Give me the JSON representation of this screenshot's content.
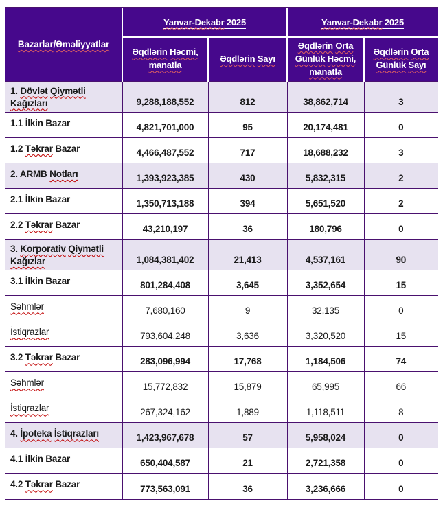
{
  "colors": {
    "header_bg": "#46088C",
    "header_text": "#FFFFFF",
    "section_row_bg": "#E7E2F0",
    "table_border": "#4A116F",
    "spellcheck_squiggle": "#C00000",
    "spellcheck_squiggle_on_header": "#E06060"
  },
  "table": {
    "corner_header": [
      {
        "t": "Bazarlar",
        "w": true
      },
      {
        "t": "/"
      },
      {
        "t": "Əməliyyatlar",
        "w": true
      }
    ],
    "period_headers": [
      {
        "segments": [
          {
            "t": "Yanvar-Dekabr",
            "u": true,
            "w": true
          },
          {
            "t": " 2025",
            "u": true
          }
        ]
      },
      {
        "segments": [
          {
            "t": "Yanvar-Dekabr",
            "u": true,
            "w": true
          },
          {
            "t": " 2025",
            "u": true
          }
        ]
      }
    ],
    "column_headers": [
      {
        "segments": [
          {
            "t": "Əqdlərin",
            "w": true
          },
          {
            "t": " "
          },
          {
            "t": "Həcmi,",
            "w": true
          },
          {
            "t": " "
          },
          {
            "t": "manatla",
            "w": true
          }
        ]
      },
      {
        "segments": [
          {
            "t": "Əqdlərin",
            "w": true
          },
          {
            "t": " "
          },
          {
            "t": "Sayı",
            "w": true
          }
        ]
      },
      {
        "segments": [
          {
            "t": "Əqdlərin",
            "w": true
          },
          {
            "t": " "
          },
          {
            "t": "Orta",
            "w": true
          },
          {
            "t": " "
          },
          {
            "t": "Günlük",
            "w": true
          },
          {
            "t": " "
          },
          {
            "t": "Həcmi,",
            "w": true
          },
          {
            "t": " "
          },
          {
            "t": "manatla",
            "w": true
          }
        ]
      },
      {
        "segments": [
          {
            "t": "Əqdlərin",
            "w": true
          },
          {
            "t": " "
          },
          {
            "t": "Orta",
            "w": true
          },
          {
            "t": " "
          },
          {
            "t": "Günlük",
            "w": true
          },
          {
            "t": " "
          },
          {
            "t": "Sayı",
            "w": true
          }
        ]
      }
    ],
    "rows": [
      {
        "kind": "section",
        "tall": true,
        "label": [
          {
            "t": "1. "
          },
          {
            "t": "Dövlət",
            "w": true
          },
          {
            "t": " "
          },
          {
            "t": "Qiymətli",
            "w": true
          },
          {
            "t": " "
          },
          {
            "t": "Kağızları",
            "w": true
          }
        ],
        "values": [
          "9,288,188,552",
          "812",
          "38,862,714",
          "3"
        ]
      },
      {
        "kind": "sub",
        "label": [
          {
            "t": "1.1 İlkin Bazar"
          }
        ],
        "values": [
          "4,821,701,000",
          "95",
          "20,174,481",
          "0"
        ]
      },
      {
        "kind": "sub",
        "label": [
          {
            "t": "1.2 "
          },
          {
            "t": "Təkrar",
            "w": true
          },
          {
            "t": " Bazar"
          }
        ],
        "values": [
          "4,466,487,552",
          "717",
          "18,688,232",
          "3"
        ]
      },
      {
        "kind": "section",
        "label": [
          {
            "t": "2. ARMB "
          },
          {
            "t": "Notları",
            "w": true
          }
        ],
        "values": [
          "1,393,923,385",
          "430",
          "5,832,315",
          "2"
        ]
      },
      {
        "kind": "sub",
        "label": [
          {
            "t": "2.1 İlkin Bazar"
          }
        ],
        "values": [
          "1,350,713,188",
          "394",
          "5,651,520",
          "2"
        ]
      },
      {
        "kind": "sub",
        "label": [
          {
            "t": "2.2 "
          },
          {
            "t": "Təkrar",
            "w": true
          },
          {
            "t": " Bazar"
          }
        ],
        "values": [
          "43,210,197",
          "36",
          "180,796",
          "0"
        ]
      },
      {
        "kind": "section",
        "tall": true,
        "label": [
          {
            "t": "3. "
          },
          {
            "t": "Korporativ",
            "w": true
          },
          {
            "t": " "
          },
          {
            "t": "Qiymətli",
            "w": true
          },
          {
            "t": " "
          },
          {
            "t": "Kağızlar",
            "w": true
          }
        ],
        "values": [
          "1,084,381,402",
          "21,413",
          "4,537,161",
          "90"
        ]
      },
      {
        "kind": "sub",
        "label": [
          {
            "t": "3.1 İlkin Bazar"
          }
        ],
        "values": [
          "801,284,408",
          "3,645",
          "3,352,654",
          "15"
        ]
      },
      {
        "kind": "sub",
        "light": true,
        "label": [
          {
            "t": "Səhmlər",
            "w": true
          }
        ],
        "values": [
          "7,680,160",
          "9",
          "32,135",
          "0"
        ]
      },
      {
        "kind": "sub",
        "light": true,
        "label": [
          {
            "t": "İstiqrazlar",
            "w": true
          }
        ],
        "values": [
          "793,604,248",
          "3,636",
          "3,320,520",
          "15"
        ]
      },
      {
        "kind": "sub",
        "label": [
          {
            "t": "3.2 "
          },
          {
            "t": "Təkrar",
            "w": true
          },
          {
            "t": " Bazar"
          }
        ],
        "values": [
          "283,096,994",
          "17,768",
          "1,184,506",
          "74"
        ]
      },
      {
        "kind": "sub",
        "light": true,
        "label": [
          {
            "t": "Səhmlər",
            "w": true
          }
        ],
        "values": [
          "15,772,832",
          "15,879",
          "65,995",
          "66"
        ]
      },
      {
        "kind": "sub",
        "light": true,
        "label": [
          {
            "t": "İstiqrazlar",
            "w": true
          }
        ],
        "values": [
          "267,324,162",
          "1,889",
          "1,118,511",
          "8"
        ]
      },
      {
        "kind": "section",
        "label": [
          {
            "t": "4. "
          },
          {
            "t": "İpoteka",
            "w": true
          },
          {
            "t": " "
          },
          {
            "t": "İstiqrazları",
            "w": true
          }
        ],
        "values": [
          "1,423,967,678",
          "57",
          "5,958,024",
          "0"
        ]
      },
      {
        "kind": "sub",
        "label": [
          {
            "t": "4.1 İlkin Bazar"
          }
        ],
        "values": [
          "650,404,587",
          "21",
          "2,721,358",
          "0"
        ]
      },
      {
        "kind": "sub",
        "label": [
          {
            "t": "4.2 "
          },
          {
            "t": "Təkrar",
            "w": true
          },
          {
            "t": " Bazar"
          }
        ],
        "values": [
          "773,563,091",
          "36",
          "3,236,666",
          "0"
        ]
      }
    ]
  }
}
